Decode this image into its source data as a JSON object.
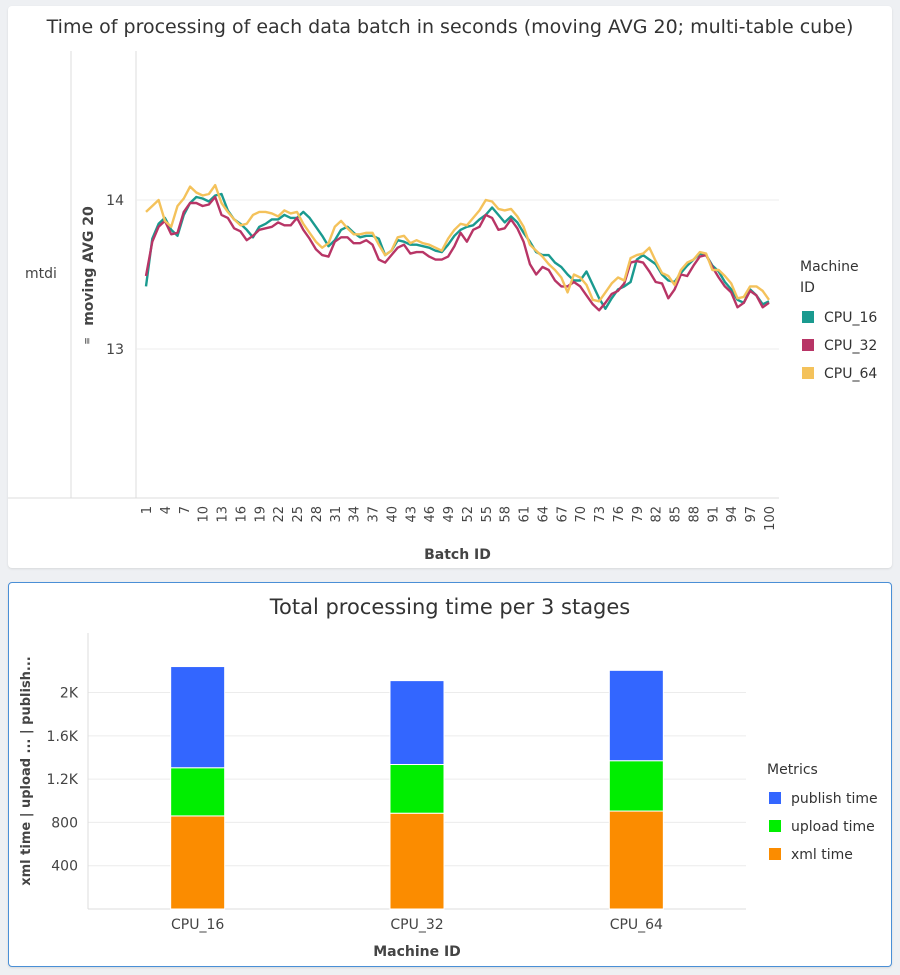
{
  "charts": [
    {
      "title": "Time of processing of each data batch in seconds (moving AVG 20; multi-table cube)",
      "row_label": "mtdi",
      "ylabel": "moving AVG 20",
      "xlabel": "Batch ID",
      "legend_title": [
        "Machine",
        "ID"
      ]
    },
    {
      "title": "Total processing time per 3 stages",
      "ylabel": "xml time  |  upload ...  |  publish...",
      "xlabel": "Machine ID",
      "legend_title": "Metrics"
    }
  ],
  "chart_data": [
    {
      "type": "line",
      "title": "Time of processing of each data batch in seconds (moving AVG 20; multi-table cube)",
      "xlabel": "Batch ID",
      "ylabel": "moving AVG 20",
      "ylim": [
        12,
        15
      ],
      "yticks": [
        13,
        14
      ],
      "xticks": [
        1,
        4,
        7,
        10,
        13,
        16,
        19,
        22,
        25,
        28,
        31,
        34,
        37,
        40,
        43,
        46,
        49,
        52,
        55,
        58,
        61,
        64,
        67,
        70,
        73,
        76,
        79,
        82,
        85,
        88,
        91,
        94,
        97,
        100
      ],
      "legend": "right",
      "grid": true,
      "x": [
        1,
        2,
        3,
        4,
        5,
        6,
        7,
        8,
        9,
        10,
        11,
        12,
        13,
        14,
        15,
        16,
        17,
        18,
        19,
        20,
        21,
        22,
        23,
        24,
        25,
        26,
        27,
        28,
        29,
        30,
        31,
        32,
        33,
        34,
        35,
        36,
        37,
        38,
        39,
        40,
        41,
        42,
        43,
        44,
        45,
        46,
        47,
        48,
        49,
        50,
        51,
        52,
        53,
        54,
        55,
        56,
        57,
        58,
        59,
        60,
        61,
        62,
        63,
        64,
        65,
        66,
        67,
        68,
        69,
        70,
        71,
        72,
        73,
        74,
        75,
        76,
        77,
        78,
        79,
        80,
        81,
        82,
        83,
        84,
        85,
        86,
        87,
        88,
        89,
        90,
        91,
        92,
        93,
        94,
        95,
        96,
        97,
        98,
        99,
        100
      ],
      "series": [
        {
          "name": "CPU_16",
          "color": "#1a9a8f",
          "values": [
            13.42,
            13.74,
            13.84,
            13.88,
            13.8,
            13.76,
            13.9,
            13.98,
            14.02,
            14.01,
            13.99,
            14.03,
            14.04,
            13.93,
            13.87,
            13.84,
            13.8,
            13.75,
            13.82,
            13.84,
            13.87,
            13.87,
            13.9,
            13.88,
            13.88,
            13.92,
            13.88,
            13.82,
            13.76,
            13.69,
            13.73,
            13.8,
            13.82,
            13.78,
            13.75,
            13.76,
            13.76,
            13.74,
            13.63,
            13.66,
            13.73,
            13.72,
            13.7,
            13.7,
            13.69,
            13.68,
            13.66,
            13.65,
            13.7,
            13.76,
            13.8,
            13.82,
            13.83,
            13.87,
            13.9,
            13.95,
            13.9,
            13.85,
            13.89,
            13.85,
            13.78,
            13.72,
            13.65,
            13.63,
            13.63,
            13.58,
            13.55,
            13.5,
            13.46,
            13.46,
            13.52,
            13.43,
            13.34,
            13.27,
            13.34,
            13.4,
            13.42,
            13.45,
            13.6,
            13.63,
            13.6,
            13.57,
            13.5,
            13.46,
            13.45,
            13.51,
            13.56,
            13.6,
            13.64,
            13.63,
            13.56,
            13.52,
            13.45,
            13.4,
            13.33,
            13.31,
            13.4,
            13.36,
            13.3,
            13.32
          ]
        },
        {
          "name": "CPU_32",
          "color": "#b83566",
          "values": [
            13.49,
            13.72,
            13.82,
            13.86,
            13.77,
            13.78,
            13.92,
            13.98,
            13.98,
            13.96,
            13.97,
            14.02,
            13.9,
            13.88,
            13.81,
            13.79,
            13.73,
            13.76,
            13.8,
            13.81,
            13.82,
            13.85,
            13.83,
            13.83,
            13.88,
            13.8,
            13.74,
            13.67,
            13.63,
            13.62,
            13.72,
            13.75,
            13.75,
            13.71,
            13.71,
            13.73,
            13.7,
            13.6,
            13.58,
            13.63,
            13.68,
            13.7,
            13.64,
            13.65,
            13.65,
            13.62,
            13.6,
            13.6,
            13.62,
            13.69,
            13.78,
            13.72,
            13.8,
            13.82,
            13.9,
            13.88,
            13.8,
            13.81,
            13.87,
            13.81,
            13.72,
            13.57,
            13.5,
            13.55,
            13.53,
            13.46,
            13.42,
            13.42,
            13.45,
            13.42,
            13.36,
            13.3,
            13.26,
            13.31,
            13.37,
            13.39,
            13.44,
            13.58,
            13.59,
            13.58,
            13.52,
            13.45,
            13.44,
            13.34,
            13.4,
            13.5,
            13.49,
            13.56,
            13.62,
            13.63,
            13.55,
            13.48,
            13.42,
            13.38,
            13.28,
            13.31,
            13.39,
            13.36,
            13.28,
            13.31
          ]
        },
        {
          "name": "CPU_64",
          "color": "#f4c25b",
          "values": [
            13.92,
            13.96,
            14.0,
            13.86,
            13.82,
            13.96,
            14.01,
            14.09,
            14.05,
            14.03,
            14.04,
            14.1,
            13.98,
            13.92,
            13.87,
            13.83,
            13.84,
            13.9,
            13.92,
            13.92,
            13.91,
            13.89,
            13.93,
            13.91,
            13.92,
            13.84,
            13.78,
            13.72,
            13.68,
            13.71,
            13.82,
            13.86,
            13.81,
            13.77,
            13.77,
            13.78,
            13.78,
            13.7,
            13.63,
            13.66,
            13.75,
            13.76,
            13.71,
            13.73,
            13.71,
            13.7,
            13.68,
            13.66,
            13.74,
            13.8,
            13.84,
            13.83,
            13.88,
            13.93,
            14.0,
            13.99,
            13.94,
            13.93,
            13.94,
            13.89,
            13.82,
            13.7,
            13.66,
            13.62,
            13.57,
            13.53,
            13.48,
            13.38,
            13.5,
            13.48,
            13.43,
            13.33,
            13.32,
            13.38,
            13.44,
            13.48,
            13.46,
            13.61,
            13.63,
            13.64,
            13.68,
            13.59,
            13.51,
            13.49,
            13.43,
            13.53,
            13.58,
            13.6,
            13.65,
            13.64,
            13.53,
            13.53,
            13.49,
            13.44,
            13.34,
            13.35,
            13.42,
            13.42,
            13.39,
            13.33
          ]
        }
      ]
    },
    {
      "type": "bar",
      "stacked": true,
      "title": "Total processing time per 3 stages",
      "xlabel": "Machine ID",
      "ylabel": "xml time  |  upload ...  |  publish...",
      "ylim": [
        0,
        2550
      ],
      "yticks": [
        400,
        800,
        1200,
        1600,
        2000
      ],
      "ytick_labels": [
        "400",
        "800",
        "1.2K",
        "1.6K",
        "2K"
      ],
      "legend": "right",
      "categories": [
        "CPU_16",
        "CPU_32",
        "CPU_64"
      ],
      "series": [
        {
          "name": "xml time",
          "color": "#fb8c00",
          "values": [
            860,
            885,
            905
          ]
        },
        {
          "name": "upload time",
          "color": "#00ee00",
          "values": [
            445,
            450,
            465
          ]
        },
        {
          "name": "publish time",
          "color": "#3366ff",
          "values": [
            935,
            775,
            835
          ]
        }
      ],
      "legend_order": [
        "publish time",
        "upload time",
        "xml time"
      ]
    }
  ]
}
